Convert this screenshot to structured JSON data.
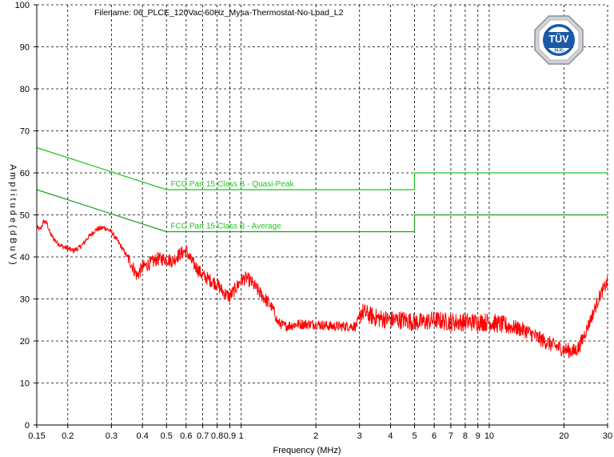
{
  "chart_data": {
    "type": "line",
    "title": "Filename: 06_PLCE_120Vac-60Hz_Mysa-Thermostat-No-Load_L2",
    "xlabel": "Frequency (MHz)",
    "ylabel": "A m p l i t u d e   ( d B u V )",
    "x_scale": "log",
    "xlim": [
      0.15,
      30
    ],
    "ylim": [
      0,
      100
    ],
    "y_ticks": [
      0,
      10,
      20,
      30,
      40,
      50,
      60,
      70,
      80,
      90,
      100
    ],
    "x_ticks": [
      {
        "value": 0.15,
        "label": "0.15"
      },
      {
        "value": 0.2,
        "label": "0.2"
      },
      {
        "value": 0.3,
        "label": "0.3"
      },
      {
        "value": 0.4,
        "label": "0.4"
      },
      {
        "value": 0.5,
        "label": "0.5"
      },
      {
        "value": 0.6,
        "label": "0.6"
      },
      {
        "value": 0.7,
        "label": "0.7"
      },
      {
        "value": 0.8,
        "label": "0.8"
      },
      {
        "value": 0.9,
        "label": "0.9"
      },
      {
        "value": 1,
        "label": "1"
      },
      {
        "value": 2,
        "label": "2"
      },
      {
        "value": 3,
        "label": "3"
      },
      {
        "value": 4,
        "label": "4"
      },
      {
        "value": 5,
        "label": "5"
      },
      {
        "value": 6,
        "label": "6"
      },
      {
        "value": 7,
        "label": "7"
      },
      {
        "value": 8,
        "label": "8"
      },
      {
        "value": 9,
        "label": "9"
      },
      {
        "value": 10,
        "label": "10"
      },
      {
        "value": 20,
        "label": "20"
      },
      {
        "value": 30,
        "label": "30"
      }
    ],
    "grid": true,
    "limits": [
      {
        "name": "FCC Part 15 Class B - Quasi-Peak",
        "color": "#22c322",
        "points": [
          [
            0.15,
            66
          ],
          [
            0.5,
            56
          ],
          [
            5,
            56
          ],
          [
            5,
            60
          ],
          [
            30,
            60
          ]
        ]
      },
      {
        "name": "FCC Part 15 Class B - Average",
        "color": "#1e9e1e",
        "points": [
          [
            0.15,
            56
          ],
          [
            0.5,
            46
          ],
          [
            5,
            46
          ],
          [
            5,
            50
          ],
          [
            30,
            50
          ]
        ]
      }
    ],
    "series": [
      {
        "color": "#ff0000",
        "points": [
          [
            0.15,
            47
          ],
          [
            0.155,
            46.5
          ],
          [
            0.16,
            48.5
          ],
          [
            0.165,
            48
          ],
          [
            0.17,
            45.5
          ],
          [
            0.18,
            43.5
          ],
          [
            0.19,
            42.5
          ],
          [
            0.2,
            42
          ],
          [
            0.21,
            41.5
          ],
          [
            0.22,
            42
          ],
          [
            0.23,
            43
          ],
          [
            0.24,
            44.5
          ],
          [
            0.25,
            45.5
          ],
          [
            0.26,
            46.5
          ],
          [
            0.28,
            47
          ],
          [
            0.3,
            46
          ],
          [
            0.32,
            43.5
          ],
          [
            0.34,
            41
          ],
          [
            0.36,
            38.5
          ],
          [
            0.38,
            35.5
          ],
          [
            0.4,
            37.5
          ],
          [
            0.43,
            38.5
          ],
          [
            0.46,
            39.5
          ],
          [
            0.5,
            39.5
          ],
          [
            0.53,
            39
          ],
          [
            0.56,
            40.5
          ],
          [
            0.6,
            41.5
          ],
          [
            0.63,
            39
          ],
          [
            0.66,
            37.5
          ],
          [
            0.7,
            35.5
          ],
          [
            0.75,
            34.5
          ],
          [
            0.8,
            33.5
          ],
          [
            0.85,
            31.5
          ],
          [
            0.9,
            30.5
          ],
          [
            0.95,
            32.5
          ],
          [
            1.0,
            34.5
          ],
          [
            1.05,
            35
          ],
          [
            1.1,
            34
          ],
          [
            1.15,
            32.5
          ],
          [
            1.25,
            30
          ],
          [
            1.35,
            27.5
          ],
          [
            1.4,
            24.5
          ],
          [
            1.5,
            23.5
          ],
          [
            1.7,
            24
          ],
          [
            2.0,
            24
          ],
          [
            2.3,
            23.5
          ],
          [
            2.6,
            23.5
          ],
          [
            2.9,
            23.5
          ],
          [
            3.0,
            25.5
          ],
          [
            3.05,
            27
          ],
          [
            3.5,
            25.5
          ],
          [
            4.0,
            25
          ],
          [
            4.5,
            25
          ],
          [
            5.0,
            24.5
          ],
          [
            5.5,
            24.5
          ],
          [
            6.0,
            25
          ],
          [
            7.0,
            24.5
          ],
          [
            8.0,
            24.5
          ],
          [
            9.0,
            24.5
          ],
          [
            10.0,
            24.5
          ],
          [
            11,
            24
          ],
          [
            12,
            23.5
          ],
          [
            14,
            22.5
          ],
          [
            16,
            20.5
          ],
          [
            18,
            19
          ],
          [
            20,
            18
          ],
          [
            22,
            17.5
          ],
          [
            23,
            18.5
          ],
          [
            24,
            21
          ],
          [
            26,
            26
          ],
          [
            28,
            31
          ],
          [
            30,
            34
          ]
        ]
      }
    ]
  },
  "logo": {
    "text": "TÜV",
    "subtext": "SÜD",
    "color": "#1a5aa8"
  }
}
